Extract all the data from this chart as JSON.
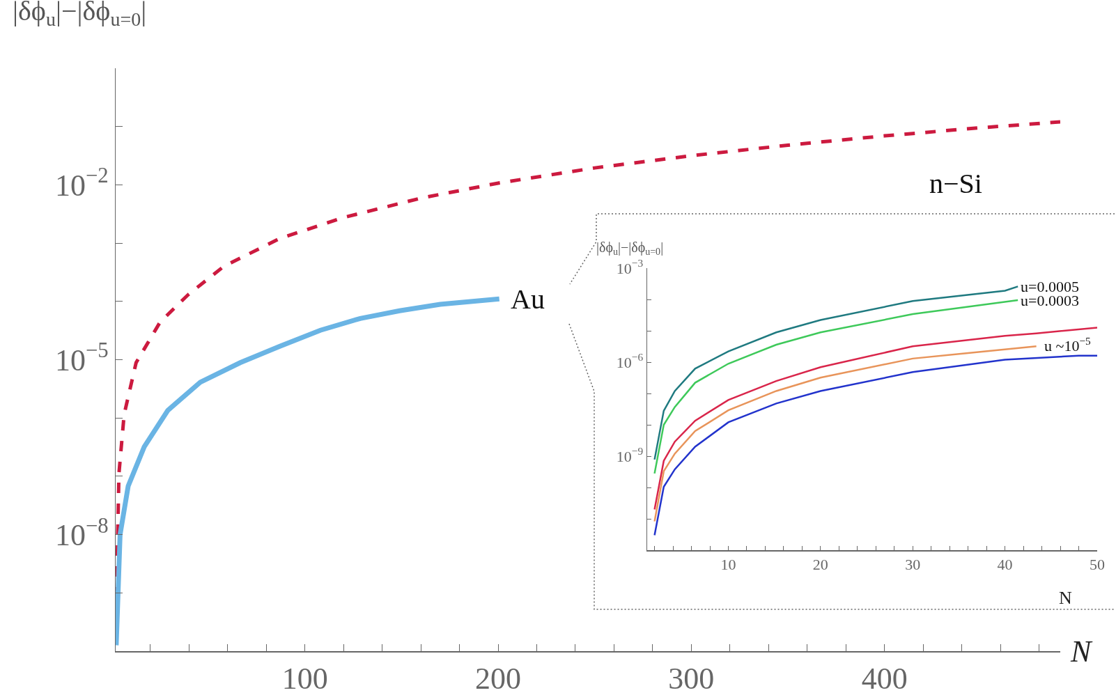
{
  "chart_data": [
    {
      "type": "line",
      "log": true,
      "xlabel": "N",
      "ylabel": "|δϕ$_{u}$|−|δϕ$_{u=0}$|",
      "xlim": [
        2,
        491
      ],
      "xticks": [
        {
          "value": 20,
          "label": null
        },
        {
          "value": 40,
          "label": null
        },
        {
          "value": 60,
          "label": null
        },
        {
          "value": 80,
          "label": null
        },
        100,
        {
          "value": 120,
          "label": null
        },
        {
          "value": 140,
          "label": null
        },
        {
          "value": 160,
          "label": null
        },
        {
          "value": 180,
          "label": null
        },
        200,
        {
          "value": 220,
          "label": null
        },
        {
          "value": 240,
          "label": null
        },
        {
          "value": 260,
          "label": null
        },
        {
          "value": 280,
          "label": null
        },
        300,
        {
          "value": 320,
          "label": null
        },
        {
          "value": 340,
          "label": null
        },
        {
          "value": 360,
          "label": null
        },
        {
          "value": 380,
          "label": null
        },
        400,
        {
          "value": 420,
          "label": null
        },
        {
          "value": 440,
          "label": null
        },
        {
          "value": 460,
          "label": null
        },
        {
          "value": 480,
          "label": null
        }
      ],
      "ylim": [
        1e-10,
        1
      ],
      "yticks": [
        {
          "value": 0.1,
          "label": null
        },
        {
          "value": 0.01,
          "label": "10$^{−2}$"
        },
        {
          "value": 0.001,
          "label": null
        },
        {
          "value": 0.0001,
          "label": null
        },
        {
          "value": 1e-05,
          "label": "10$^{−5}$"
        },
        {
          "value": 1e-06,
          "label": null
        },
        {
          "value": 1e-07,
          "label": null
        },
        {
          "value": 1e-08,
          "label": "10$^{−8}$"
        },
        {
          "value": 1e-09,
          "label": null
        }
      ],
      "series": [
        {
          "name": "n−Si",
          "color": "#cc1a3f",
          "line_style": "dashed",
          "x": [
            2,
            3.7,
            6.4,
            12.6,
            25,
            39.5,
            58,
            87,
            120,
            160,
            200,
            250,
            300,
            350,
            400,
            450,
            491
          ],
          "values": [
            1.6e-10,
            1.1e-07,
            1.15e-06,
            8.9e-06,
            4.4e-05,
            0.00013,
            0.0004,
            0.0012,
            0.00275,
            0.0059,
            0.0107,
            0.0195,
            0.0316,
            0.0479,
            0.0692,
            0.0955,
            0.12
          ]
        },
        {
          "name": "Au",
          "color": "#6ab4e4",
          "line_style": "solid",
          "x": [
            2.3,
            4.3,
            8.5,
            16.8,
            29,
            45.8,
            66.5,
            87,
            108,
            128.6,
            149,
            170,
            200.6
          ],
          "values": [
            1.26e-10,
            1e-08,
            6.8e-08,
            3.2e-07,
            1.35e-06,
            4.1e-06,
            8.9e-06,
            1.7e-05,
            3.2e-05,
            5.1e-05,
            6.9e-05,
            8.9e-05,
            0.00011
          ]
        }
      ]
    },
    {
      "type": "line",
      "log": true,
      "xlabel": "N",
      "ylabel": "|δϕ$_{u}$|−|δϕ$_{u=0}$|",
      "xlim": [
        1.2,
        50
      ],
      "xticks": [
        {
          "value": 2,
          "label": null
        },
        {
          "value": 4,
          "label": null
        },
        {
          "value": 6,
          "label": null
        },
        {
          "value": 8,
          "label": null
        },
        10,
        {
          "value": 12,
          "label": null
        },
        {
          "value": 14,
          "label": null
        },
        {
          "value": 16,
          "label": null
        },
        {
          "value": 18,
          "label": null
        },
        20,
        {
          "value": 22,
          "label": null
        },
        {
          "value": 24,
          "label": null
        },
        {
          "value": 26,
          "label": null
        },
        {
          "value": 28,
          "label": null
        },
        30,
        {
          "value": 32,
          "label": null
        },
        {
          "value": 34,
          "label": null
        },
        {
          "value": 36,
          "label": null
        },
        {
          "value": 38,
          "label": null
        },
        40,
        {
          "value": 42,
          "label": null
        },
        {
          "value": 44,
          "label": null
        },
        {
          "value": 46,
          "label": null
        },
        {
          "value": 48,
          "label": null
        },
        50
      ],
      "ylim": [
        1e-12,
        0.001
      ],
      "yticks": [
        {
          "value": 0.001,
          "label": "10$^{−3}$"
        },
        {
          "value": 0.0001,
          "label": null
        },
        {
          "value": 1e-05,
          "label": null
        },
        {
          "value": 1e-06,
          "label": "10$^{−6}$"
        },
        {
          "value": 1e-07,
          "label": null
        },
        {
          "value": 1e-08,
          "label": null
        },
        {
          "value": 1e-09,
          "label": "10$^{−9}$"
        },
        {
          "value": 1e-10,
          "label": null
        },
        {
          "value": 1e-11,
          "label": null
        },
        {
          "value": 1e-12,
          "label": null
        }
      ],
      "annotations": [
        "u ~10$^{−5}$"
      ],
      "series": [
        {
          "name": "u=0.0005",
          "color": "#1f7a80",
          "x": [
            2,
            3,
            4.2,
            6.4,
            10,
            15.2,
            20,
            30,
            40,
            41.4
          ],
          "values": [
            7.8e-10,
            2.8e-08,
            1.2e-07,
            6.2e-07,
            2.2e-06,
            8.9e-06,
            2.2e-05,
            8.9e-05,
            0.00019,
            0.00026
          ]
        },
        {
          "name": "u=0.0003",
          "color": "#3ec95a",
          "x": [
            2,
            3,
            4.2,
            6.4,
            10,
            15.2,
            20,
            30,
            41.4
          ],
          "values": [
            2.8e-10,
            1e-08,
            3.7e-08,
            2.2e-07,
            8.9e-07,
            3.6e-06,
            8.9e-06,
            3.4e-05,
            9.5e-05
          ]
        },
        {
          "color": "#d9254a",
          "x": [
            2,
            3,
            4.2,
            6.4,
            10,
            15.2,
            20,
            30,
            40,
            43.4,
            50
          ],
          "values": [
            2e-11,
            7.1e-10,
            2.9e-09,
            1.35e-08,
            6.2e-08,
            2.5e-07,
            6.9e-07,
            3.2e-06,
            6.9e-06,
            8.3e-06,
            1.26e-05
          ]
        },
        {
          "color": "#e8945a",
          "x": [
            2,
            3,
            4.2,
            6.4,
            10,
            15.2,
            20,
            30,
            43.4
          ],
          "values": [
            8.3e-12,
            3.3e-10,
            1.2e-09,
            6.3e-09,
            2.9e-08,
            1.2e-07,
            3.2e-07,
            1.3e-06,
            3.2e-06
          ]
        },
        {
          "color": "#2233cc",
          "x": [
            2,
            3,
            4.2,
            6.4,
            10,
            15.2,
            20,
            30,
            40,
            48,
            50
          ],
          "values": [
            3e-12,
            1.05e-10,
            3.8e-10,
            2e-09,
            1.2e-08,
            4.8e-08,
            1.2e-07,
            4.8e-07,
            1.2e-06,
            1.6e-06,
            1.6e-06
          ]
        }
      ]
    }
  ]
}
